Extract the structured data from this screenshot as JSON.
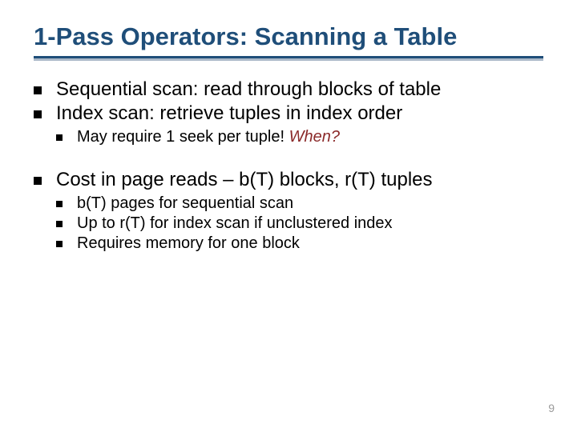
{
  "colors": {
    "title": "#1f4e79",
    "rule_dark": "#1f4e79",
    "rule_light": "#aab8c8",
    "bullet": "#000000",
    "text": "#000000",
    "emph": "#8b2a2a",
    "pagenum": "#9a9a9a"
  },
  "fontsize": {
    "title": 31,
    "lvl1": 24,
    "lvl2": 20,
    "pagenum": 14
  },
  "title": "1-Pass Operators:  Scanning a Table",
  "b1": "Sequential scan:  read through blocks of table",
  "b2": "Index scan:  retrieve tuples in index order",
  "b2_1a": "May require 1 seek per tuple!  ",
  "b2_1b": "When?",
  "b3": "Cost in page reads – b(T) blocks, r(T) tuples",
  "b3_1": "b(T) pages for sequential scan",
  "b3_2": "Up to r(T) for index scan if unclustered index",
  "b3_3": "Requires memory for one block",
  "pagenum": "9"
}
